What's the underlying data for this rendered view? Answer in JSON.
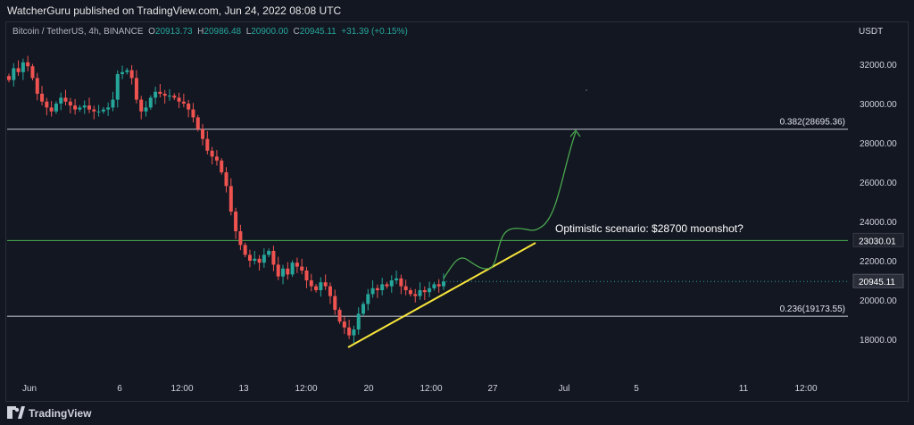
{
  "header": {
    "text": "WatcherGuru published on TradingView.com, Jun 24, 2022 08:08 UTC"
  },
  "legend": {
    "symbol": "Bitcoin / TetherUS, 4h, BINANCE",
    "o_key": "O",
    "o_val": "20913.73",
    "h_key": "H",
    "h_val": "20986.48",
    "l_key": "L",
    "l_val": "20900.00",
    "c_key": "C",
    "c_val": "20945.11",
    "change": "+31.39 (+0.15%)"
  },
  "currency": "USDT",
  "footer": {
    "brand": "TradingView"
  },
  "colors": {
    "up": "#26a69a",
    "down": "#ef5350",
    "fib": "#b2b5be",
    "support": "#4caf50",
    "trend": "#f7e53b",
    "scenario": "#4caf50",
    "price_label": "#1e222d"
  },
  "chart_data": {
    "type": "candlestick",
    "title": "",
    "ylabel": "USDT",
    "ylim": [
      16800,
      33500
    ],
    "y_ticks": [
      "32000.00",
      "30000.00",
      "28000.00",
      "26000.00",
      "24000.00",
      "22000.00",
      "20000.00",
      "18000.00"
    ],
    "x_ticks": [
      "Jun",
      "6",
      "12:00",
      "13",
      "12:00",
      "20",
      "12:00",
      "27",
      "Jul",
      "5",
      "11",
      "12:00"
    ],
    "close_path": [
      31200,
      31800,
      31600,
      32100,
      31900,
      31300,
      30500,
      30100,
      29800,
      29600,
      30000,
      30300,
      30100,
      29900,
      29700,
      29800,
      29900,
      29700,
      29600,
      29600,
      29700,
      29800,
      30200,
      31500,
      31600,
      31700,
      31300,
      30200,
      29600,
      29800,
      30300,
      30600,
      30500,
      30400,
      30400,
      30300,
      30100,
      30000,
      29700,
      29300,
      28700,
      28200,
      27600,
      27300,
      27100,
      26500,
      25800,
      24500,
      23500,
      22800,
      22300,
      22000,
      22100,
      21900,
      22300,
      22500,
      21800,
      21200,
      21600,
      21300,
      21900,
      21700,
      21500,
      21000,
      20700,
      20500,
      20900,
      20700,
      20200,
      19500,
      18900,
      18600,
      18200,
      18500,
      19300,
      19800,
      20300,
      20600,
      20500,
      20800,
      20700,
      21000,
      21100,
      20700,
      20500,
      20300,
      20200,
      20500,
      20400,
      20600,
      20800,
      20700,
      20945
    ],
    "support_level": "23030.01",
    "current_price": "20945.11",
    "fib_levels": [
      {
        "label": "0.382(28695.36)",
        "value": 28695.36
      },
      {
        "label": "0.236(19173.55)",
        "value": 19173.55
      }
    ],
    "annotation": "Optimistic scenario: $28700 moonshot?",
    "trendline": [
      [
        17650,
        "start"
      ],
      [
        23000,
        "end"
      ]
    ],
    "scenario_path": "projected rise to 28695"
  }
}
